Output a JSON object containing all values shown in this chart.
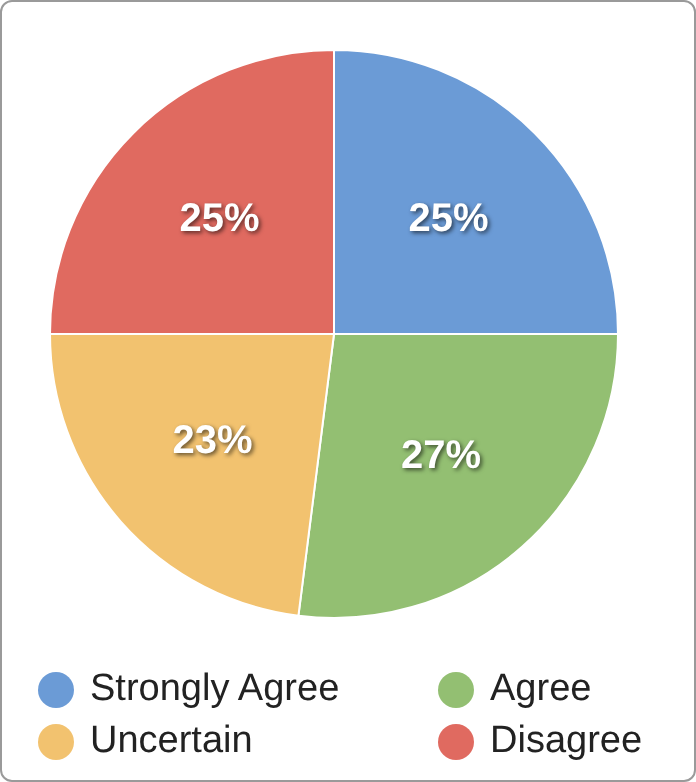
{
  "chart_data": {
    "type": "pie",
    "categories": [
      "Strongly Agree",
      "Agree",
      "Uncertain",
      "Disagree"
    ],
    "values": [
      25,
      27,
      23,
      25
    ],
    "colors": [
      "#6b9bd6",
      "#93bf72",
      "#f2c26f",
      "#e06a60"
    ],
    "value_labels": [
      "25%",
      "27%",
      "23%",
      "25%"
    ],
    "legend": "bottom"
  }
}
